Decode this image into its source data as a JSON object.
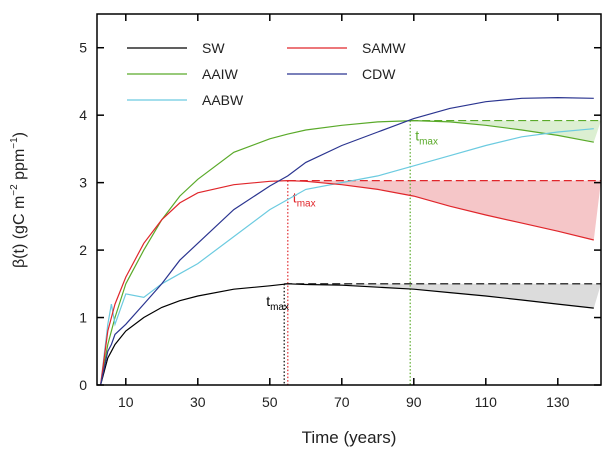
{
  "chart_data": {
    "type": "line",
    "xlabel": "Time (years)",
    "ylabel": {
      "parts": [
        "β(t) (gC m",
        "−2",
        " ppm",
        "−1",
        ")"
      ]
    },
    "xlim": [
      2,
      142
    ],
    "ylim": [
      0,
      5.5
    ],
    "xticks": [
      10,
      30,
      50,
      70,
      90,
      110,
      130
    ],
    "yticks": [
      0,
      1,
      2,
      3,
      4,
      5
    ],
    "grid": false,
    "legend": "upper left",
    "x": [
      3,
      5,
      6,
      7,
      10,
      15,
      20,
      25,
      30,
      40,
      50,
      55,
      60,
      70,
      80,
      90,
      100,
      110,
      120,
      130,
      140
    ],
    "series": [
      {
        "name": "SW",
        "color": "#000000",
        "values": [
          0,
          0.4,
          0.5,
          0.6,
          0.8,
          1.0,
          1.15,
          1.25,
          1.32,
          1.42,
          1.47,
          1.5,
          1.49,
          1.48,
          1.45,
          1.42,
          1.37,
          1.32,
          1.26,
          1.2,
          1.14
        ]
      },
      {
        "name": "AAIW",
        "color": "#5aaa2a",
        "values": [
          0,
          0.6,
          0.8,
          1.0,
          1.5,
          2.0,
          2.45,
          2.8,
          3.05,
          3.45,
          3.65,
          3.72,
          3.78,
          3.85,
          3.9,
          3.92,
          3.9,
          3.85,
          3.78,
          3.7,
          3.6
        ]
      },
      {
        "name": "AABW",
        "color": "#6ccbe0",
        "values": [
          0,
          0.9,
          1.2,
          0.9,
          1.35,
          1.3,
          1.5,
          1.65,
          1.8,
          2.2,
          2.6,
          2.75,
          2.9,
          3.0,
          3.1,
          3.25,
          3.4,
          3.55,
          3.68,
          3.75,
          3.8
        ]
      },
      {
        "name": "SAMW",
        "color": "#e0262b",
        "values": [
          0,
          0.8,
          1.0,
          1.2,
          1.6,
          2.1,
          2.45,
          2.7,
          2.85,
          2.97,
          3.02,
          3.03,
          3.02,
          2.97,
          2.9,
          2.8,
          2.65,
          2.52,
          2.4,
          2.28,
          2.15
        ]
      },
      {
        "name": "CDW",
        "color": "#2b3590",
        "values": [
          0,
          0.5,
          0.6,
          0.75,
          0.9,
          1.2,
          1.5,
          1.85,
          2.1,
          2.6,
          2.95,
          3.1,
          3.3,
          3.55,
          3.75,
          3.95,
          4.1,
          4.2,
          4.25,
          4.26,
          4.25
        ]
      }
    ],
    "annotations": [
      {
        "series": 0,
        "x": 54,
        "y": 1.5,
        "label": "t",
        "sub": "max",
        "shade": "#dcdcdc"
      },
      {
        "series": 3,
        "x": 55,
        "y": 3.03,
        "label": "t",
        "sub": "max",
        "shade": "#f5c6c8"
      },
      {
        "series": 1,
        "x": 89,
        "y": 3.92,
        "label": "t",
        "sub": "max",
        "shade": "#dcefd2"
      }
    ]
  }
}
